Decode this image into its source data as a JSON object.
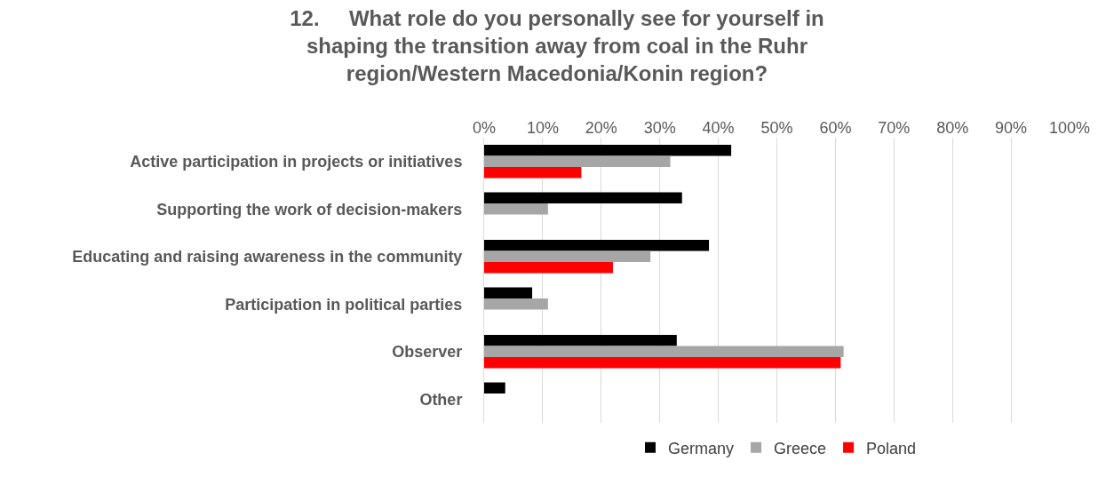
{
  "chart_data": {
    "type": "bar",
    "orientation": "horizontal",
    "title": "12.     What role do you personally see for yourself in shaping the transition away from coal in the Ruhr region/Western Macedonia/Konin region?",
    "categories": [
      "Active participation in projects or initiatives",
      "Supporting the work of decision-makers",
      "Educating and raising awareness in the community",
      "Participation in political parties",
      "Observer",
      "Other"
    ],
    "series": [
      {
        "name": "Germany",
        "color": "#000000",
        "values": [
          42.2,
          33.8,
          38.4,
          8.2,
          32.9,
          3.6
        ]
      },
      {
        "name": "Greece",
        "color": "#a6a6a6",
        "values": [
          31.8,
          10.9,
          28.4,
          10.9,
          61.4,
          0
        ]
      },
      {
        "name": "Poland",
        "color": "#ff0000",
        "values": [
          16.6,
          0,
          22.0,
          0,
          60.9,
          0
        ]
      }
    ],
    "xlim": [
      0,
      100
    ],
    "xticks": [
      {
        "value": 0,
        "label": "0%"
      },
      {
        "value": 10,
        "label": "10%"
      },
      {
        "value": 20,
        "label": "20%"
      },
      {
        "value": 30,
        "label": "30%"
      },
      {
        "value": 40,
        "label": "40%"
      },
      {
        "value": 50,
        "label": "50%"
      },
      {
        "value": 60,
        "label": "60%"
      },
      {
        "value": 70,
        "label": "70%"
      },
      {
        "value": 80,
        "label": "80%"
      },
      {
        "value": 90,
        "label": "90%"
      },
      {
        "value": 100,
        "label": "100%"
      }
    ],
    "grid": "x",
    "legend": "bottom"
  }
}
